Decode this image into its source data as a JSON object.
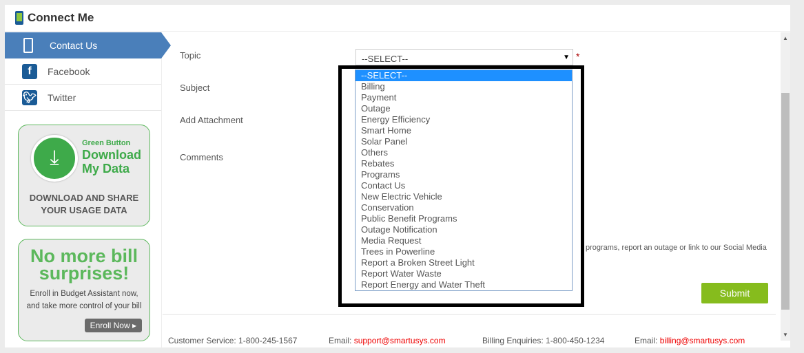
{
  "header": {
    "title": "Connect Me",
    "icon": "phone-mail-icon"
  },
  "sidebar": {
    "items": [
      {
        "label": "Contact Us",
        "icon": "phone-mail-icon",
        "active": true
      },
      {
        "label": "Facebook",
        "icon": "facebook-icon"
      },
      {
        "label": "Twitter",
        "icon": "twitter-icon"
      }
    ]
  },
  "promo_green_button": {
    "line1": "Green Button",
    "line2": "Download",
    "line3": "My Data",
    "caption1": "DOWNLOAD AND SHARE",
    "caption2": "YOUR USAGE DATA"
  },
  "promo_budget": {
    "headline1": "No more bill",
    "headline2": "surprises!",
    "text1": "Enroll in Budget Assistant now,",
    "text2": "and take more control of your bill",
    "button": "Enroll Now"
  },
  "form": {
    "topic_label": "Topic",
    "subject_label": "Subject",
    "attachment_label": "Add Attachment",
    "comments_label": "Comments",
    "required_mark": "*",
    "topic_value": "--SELECT--",
    "topic_options": [
      "--SELECT--",
      "Billing",
      "Payment",
      "Outage",
      "Energy Efficiency",
      "Smart Home",
      "Solar Panel",
      "Others",
      "Rebates",
      "Programs",
      "Contact Us",
      "New Electric Vehicle",
      "Conservation",
      "Public Benefit Programs",
      "Outage Notification",
      "Media Request",
      "Trees in Powerline",
      "Report a Broken Street Light",
      "Report Water Waste",
      "Report Energy and Water Theft"
    ],
    "info_text": "our programs, report an outage or link to our Social Media",
    "submit": "Submit"
  },
  "footer": {
    "customer_service": "Customer Service: 1-800-245-1567",
    "email1_label": "Email:",
    "email1": "support@smartusys.com",
    "billing": "Billing Enquiries: 1-800-450-1234",
    "email2_label": "Email:",
    "email2": "billing@smartusys.com"
  },
  "colors": {
    "accent": "#4a7fba",
    "submit": "#86bc1d",
    "highlight": "#1e90ff",
    "promo_green": "#5cb85c"
  }
}
